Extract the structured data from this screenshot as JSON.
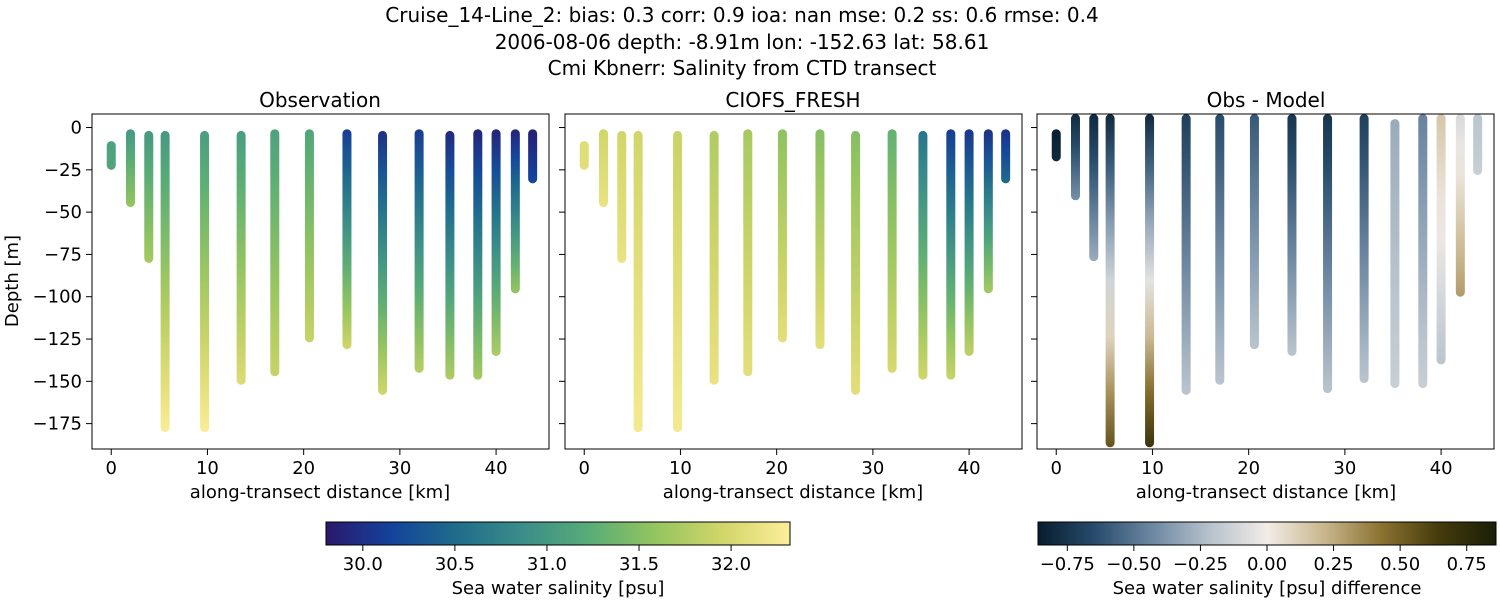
{
  "figure": {
    "title_lines": [
      "Cruise_14-Line_2: bias: 0.3  corr: 0.9  ioa: nan  mse: 0.2  ss: 0.6  rmse: 0.4",
      "2006-08-06 depth: -8.91m lon: -152.63 lat: 58.61",
      "Cmi Kbnerr: Salinity from CTD transect"
    ]
  },
  "chart_data": [
    {
      "type": "scatter",
      "title": "Observation",
      "xlabel": "along-transect distance [km]",
      "ylabel": "Depth [m]",
      "xlim": [
        -2,
        45.5
      ],
      "ylim": [
        -190,
        8
      ],
      "xticks": [
        0,
        10,
        20,
        30,
        40
      ],
      "yticks": [
        0,
        -25,
        -50,
        -75,
        -100,
        -125,
        -150,
        -175
      ],
      "colormap": "haline",
      "profiles": [
        {
          "x": 0.0,
          "top": -8,
          "bottom": -25,
          "top_value": 31.1,
          "bottom_value": 31.15
        },
        {
          "x": 2.0,
          "top": -1,
          "bottom": -47,
          "top_value": 31.0,
          "bottom_value": 31.6
        },
        {
          "x": 3.9,
          "top": -2,
          "bottom": -80,
          "top_value": 31.0,
          "bottom_value": 31.7
        },
        {
          "x": 5.6,
          "top": -2,
          "bottom": -180,
          "top_value": 31.0,
          "bottom_value": 32.3
        },
        {
          "x": 9.7,
          "top": -2,
          "bottom": -180,
          "top_value": 31.05,
          "bottom_value": 32.3
        },
        {
          "x": 13.5,
          "top": -2,
          "bottom": -152,
          "top_value": 31.05,
          "bottom_value": 32.05
        },
        {
          "x": 17.0,
          "top": -1,
          "bottom": -147,
          "top_value": 31.1,
          "bottom_value": 31.9
        },
        {
          "x": 20.6,
          "top": -1,
          "bottom": -127,
          "top_value": 31.15,
          "bottom_value": 31.9
        },
        {
          "x": 24.5,
          "top": -1,
          "bottom": -131,
          "top_value": 30.1,
          "bottom_value": 31.95
        },
        {
          "x": 28.2,
          "top": -2,
          "bottom": -158,
          "top_value": 30.0,
          "bottom_value": 31.95
        },
        {
          "x": 32.0,
          "top": -1,
          "bottom": -145,
          "top_value": 30.1,
          "bottom_value": 31.8
        },
        {
          "x": 35.2,
          "top": -2,
          "bottom": -149,
          "top_value": 29.95,
          "bottom_value": 31.75
        },
        {
          "x": 38.1,
          "top": -1,
          "bottom": -149,
          "top_value": 29.9,
          "bottom_value": 31.7
        },
        {
          "x": 40.0,
          "top": -1,
          "bottom": -135,
          "top_value": 29.9,
          "bottom_value": 31.75
        },
        {
          "x": 42.0,
          "top": -1,
          "bottom": -98,
          "top_value": 29.9,
          "bottom_value": 31.6
        },
        {
          "x": 43.8,
          "top": -1,
          "bottom": -33,
          "top_value": 29.85,
          "bottom_value": 30.2
        }
      ]
    },
    {
      "type": "scatter",
      "title": "CIOFS_FRESH",
      "xlabel": "along-transect distance [km]",
      "xlim": [
        -2,
        45.5
      ],
      "ylim": [
        -190,
        8
      ],
      "xticks": [
        0,
        10,
        20,
        30,
        40
      ],
      "colormap": "haline",
      "profiles": [
        {
          "x": 0.0,
          "top": -8,
          "bottom": -25,
          "top_value": 32.05,
          "bottom_value": 32.1
        },
        {
          "x": 2.0,
          "top": -1,
          "bottom": -47,
          "top_value": 31.95,
          "bottom_value": 32.15
        },
        {
          "x": 3.9,
          "top": -2,
          "bottom": -80,
          "top_value": 31.95,
          "bottom_value": 32.15
        },
        {
          "x": 5.6,
          "top": -2,
          "bottom": -180,
          "top_value": 31.95,
          "bottom_value": 32.25
        },
        {
          "x": 9.7,
          "top": -2,
          "bottom": -180,
          "top_value": 31.9,
          "bottom_value": 32.25
        },
        {
          "x": 13.5,
          "top": -2,
          "bottom": -152,
          "top_value": 31.75,
          "bottom_value": 32.15
        },
        {
          "x": 17.0,
          "top": -1,
          "bottom": -147,
          "top_value": 31.7,
          "bottom_value": 32.1
        },
        {
          "x": 20.6,
          "top": -1,
          "bottom": -127,
          "top_value": 31.55,
          "bottom_value": 32.1
        },
        {
          "x": 24.5,
          "top": -1,
          "bottom": -131,
          "top_value": 31.5,
          "bottom_value": 32.1
        },
        {
          "x": 28.2,
          "top": -2,
          "bottom": -158,
          "top_value": 31.5,
          "bottom_value": 32.1
        },
        {
          "x": 32.0,
          "top": -1,
          "bottom": -145,
          "top_value": 31.3,
          "bottom_value": 32.0
        },
        {
          "x": 35.2,
          "top": -2,
          "bottom": -149,
          "top_value": 30.6,
          "bottom_value": 31.95
        },
        {
          "x": 38.1,
          "top": -1,
          "bottom": -149,
          "top_value": 30.1,
          "bottom_value": 31.9
        },
        {
          "x": 40.0,
          "top": -1,
          "bottom": -135,
          "top_value": 30.05,
          "bottom_value": 31.85
        },
        {
          "x": 42.0,
          "top": -1,
          "bottom": -98,
          "top_value": 30.0,
          "bottom_value": 31.7
        },
        {
          "x": 43.8,
          "top": -1,
          "bottom": -33,
          "top_value": 30.0,
          "bottom_value": 30.5
        }
      ]
    },
    {
      "type": "scatter",
      "title": "Obs - Model",
      "xlabel": "along-transect distance [km]",
      "xlim": [
        -2,
        45.5
      ],
      "ylim": [
        -190,
        8
      ],
      "xticks": [
        0,
        10,
        20,
        30,
        40
      ],
      "colormap": "diff",
      "profiles": [
        {
          "x": 0.0,
          "top": -1,
          "bottom": -20,
          "top_value": -0.85,
          "bottom_value": -0.8
        },
        {
          "x": 2.0,
          "top": 8,
          "bottom": -43,
          "top_value": -0.8,
          "bottom_value": -0.4
        },
        {
          "x": 3.9,
          "top": 8,
          "bottom": -79,
          "top_value": -0.8,
          "bottom_value": -0.3
        },
        {
          "x": 5.6,
          "top": 8,
          "bottom": -189,
          "top_value": -0.8,
          "bottom_value": 0.55
        },
        {
          "x": 9.7,
          "top": 8,
          "bottom": -189,
          "top_value": -0.8,
          "bottom_value": 0.7
        },
        {
          "x": 13.5,
          "top": 8,
          "bottom": -158,
          "top_value": -0.7,
          "bottom_value": -0.2
        },
        {
          "x": 17.0,
          "top": 8,
          "bottom": -152,
          "top_value": -0.65,
          "bottom_value": -0.2
        },
        {
          "x": 20.6,
          "top": 8,
          "bottom": -131,
          "top_value": -0.6,
          "bottom_value": -0.2
        },
        {
          "x": 24.5,
          "top": 8,
          "bottom": -135,
          "top_value": -0.75,
          "bottom_value": -0.2
        },
        {
          "x": 28.2,
          "top": 8,
          "bottom": -157,
          "top_value": -0.75,
          "bottom_value": -0.2
        },
        {
          "x": 32.0,
          "top": 8,
          "bottom": -151,
          "top_value": -0.7,
          "bottom_value": -0.2
        },
        {
          "x": 35.2,
          "top": 5,
          "bottom": -154,
          "top_value": -0.3,
          "bottom_value": -0.15
        },
        {
          "x": 38.1,
          "top": 8,
          "bottom": -154,
          "top_value": -0.45,
          "bottom_value": -0.15
        },
        {
          "x": 40.0,
          "top": 8,
          "bottom": -140,
          "top_value": 0.15,
          "bottom_value": -0.2
        },
        {
          "x": 42.0,
          "top": 8,
          "bottom": -100,
          "top_value": -0.1,
          "bottom_value": 0.3
        },
        {
          "x": 43.8,
          "top": 8,
          "bottom": -28,
          "top_value": -0.2,
          "bottom_value": -0.15
        }
      ]
    }
  ],
  "colorbars": [
    {
      "label": "Sea water salinity [psu]",
      "range": [
        29.8,
        32.32
      ],
      "ticks": [
        30.0,
        30.5,
        31.0,
        31.5,
        32.0
      ],
      "tick_labels": [
        "30.0",
        "30.5",
        "31.0",
        "31.5",
        "32.0"
      ],
      "colormap": "haline"
    },
    {
      "label": "Sea water salinity [psu] difference",
      "range": [
        -0.86,
        0.86
      ],
      "ticks": [
        -0.75,
        -0.5,
        -0.25,
        0.0,
        0.25,
        0.5,
        0.75
      ],
      "tick_labels": [
        "−0.75",
        "−0.50",
        "−0.25",
        "0.00",
        "0.25",
        "0.50",
        "0.75"
      ],
      "colormap": "diff"
    }
  ],
  "colormaps": {
    "haline": [
      "#2a186c",
      "#14439c",
      "#206e8b",
      "#3c8e8a",
      "#59ad76",
      "#96c55f",
      "#d2d66a",
      "#fdee99"
    ],
    "diff": [
      "#071d2e",
      "#284c6c",
      "#6d88a2",
      "#b6c2cc",
      "#f2ece7",
      "#c8b68d",
      "#8b7230",
      "#453b0c",
      "#1a1f07"
    ]
  }
}
